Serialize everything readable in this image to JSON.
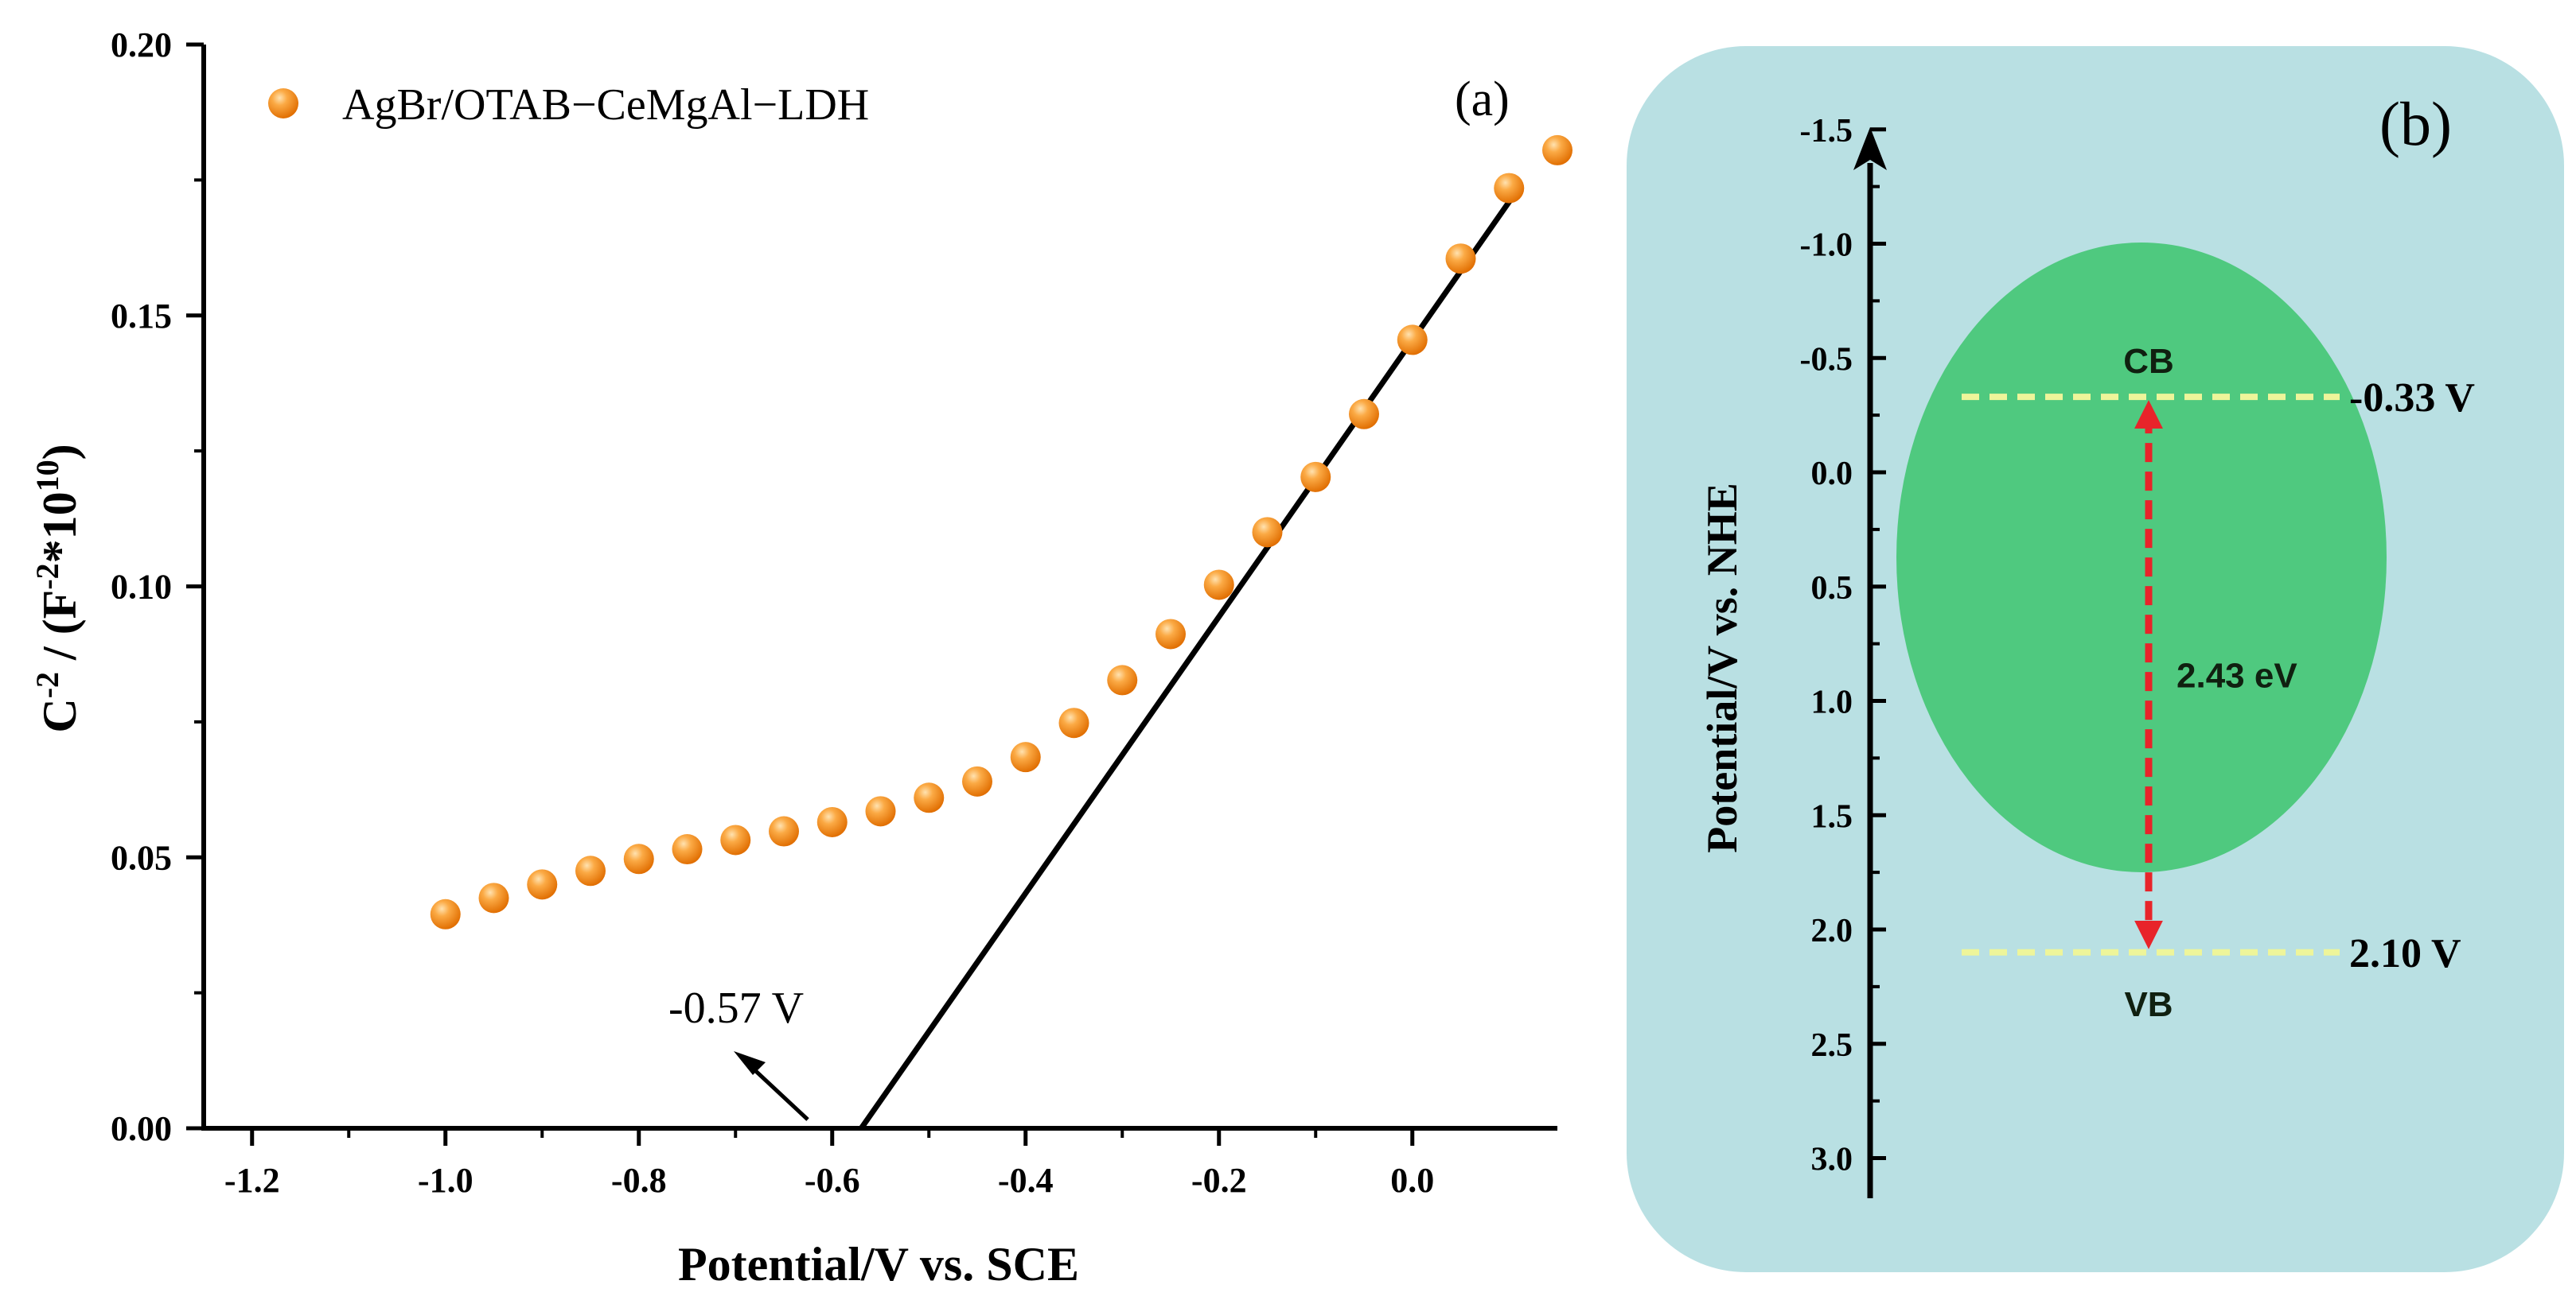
{
  "chart_data": [
    {
      "panel": "(a)",
      "type": "scatter",
      "title": "",
      "xlabel": "Potential/V vs. SCE",
      "ylabel_parts": {
        "c": "C",
        "c_exp": "-2",
        "mid": " / (F",
        "f_exp": "-2",
        "times": "*10",
        "ten_exp": "10",
        "end": ")"
      },
      "xlim": [
        -1.25,
        0.15
      ],
      "ylim": [
        0.0,
        0.2
      ],
      "xticks": [
        -1.2,
        -1.0,
        -0.8,
        -0.6,
        -0.4,
        -0.2,
        0.0
      ],
      "xtick_labels": [
        "-1.2",
        "-1.0",
        "-0.8",
        "-0.6",
        "-0.4",
        "-0.2",
        "0.0"
      ],
      "yticks": [
        0.0,
        0.05,
        0.1,
        0.15,
        0.2
      ],
      "ytick_labels": [
        "0.00",
        "0.05",
        "0.10",
        "0.15",
        "0.20"
      ],
      "series": [
        {
          "name": "AgBr/OTAB−CeMgAl−LDH",
          "color": "#f7941d",
          "x": [
            -1.0,
            -0.95,
            -0.9,
            -0.85,
            -0.8,
            -0.75,
            -0.7,
            -0.65,
            -0.6,
            -0.55,
            -0.5,
            -0.45,
            -0.4,
            -0.35,
            -0.3,
            -0.25,
            -0.2,
            -0.15,
            -0.1,
            -0.05,
            0.0,
            0.05,
            0.1,
            0.15
          ],
          "y": [
            0.0395,
            0.0425,
            0.045,
            0.0475,
            0.0497,
            0.0515,
            0.0532,
            0.0548,
            0.0565,
            0.0585,
            0.061,
            0.064,
            0.0685,
            0.0748,
            0.0827,
            0.0912,
            0.1003,
            0.11,
            0.1202,
            0.1318,
            0.1455,
            0.1605,
            0.1735,
            0.1805
          ]
        }
      ],
      "fit_line": {
        "x": [
          -0.57,
          0.11
        ],
        "y": [
          0.0,
          0.1735
        ],
        "color": "#000000"
      },
      "annotation": {
        "text": "-0.57 V",
        "arrow_to": [
          -0.57,
          0.0
        ]
      },
      "panel_label": "(a)",
      "legend_position": "top-left"
    },
    {
      "panel": "(b)",
      "type": "diagram",
      "ylabel": "Potential/V vs. NHE",
      "ylim": [
        -1.5,
        3.0
      ],
      "yticks": [
        -1.5,
        -1.0,
        -0.5,
        0.0,
        0.5,
        1.0,
        1.5,
        2.0,
        2.5,
        3.0
      ],
      "ytick_labels": [
        "-1.5",
        "-1.0",
        "-0.5",
        "0.0",
        "0.5",
        "1.0",
        "1.5",
        "2.0",
        "2.5",
        "3.0"
      ],
      "cb": {
        "label": "CB",
        "value": -0.33,
        "value_label": "-0.33 V"
      },
      "vb": {
        "label": "VB",
        "value": 2.1,
        "value_label": "2.10 V"
      },
      "band_gap_label": "2.43 eV",
      "panel_label": "(b)",
      "colors": {
        "background": "#b9e0e3",
        "ellipse": "#4fc97f",
        "dash": "#eef59a",
        "arrow": "#e8242a"
      }
    }
  ]
}
